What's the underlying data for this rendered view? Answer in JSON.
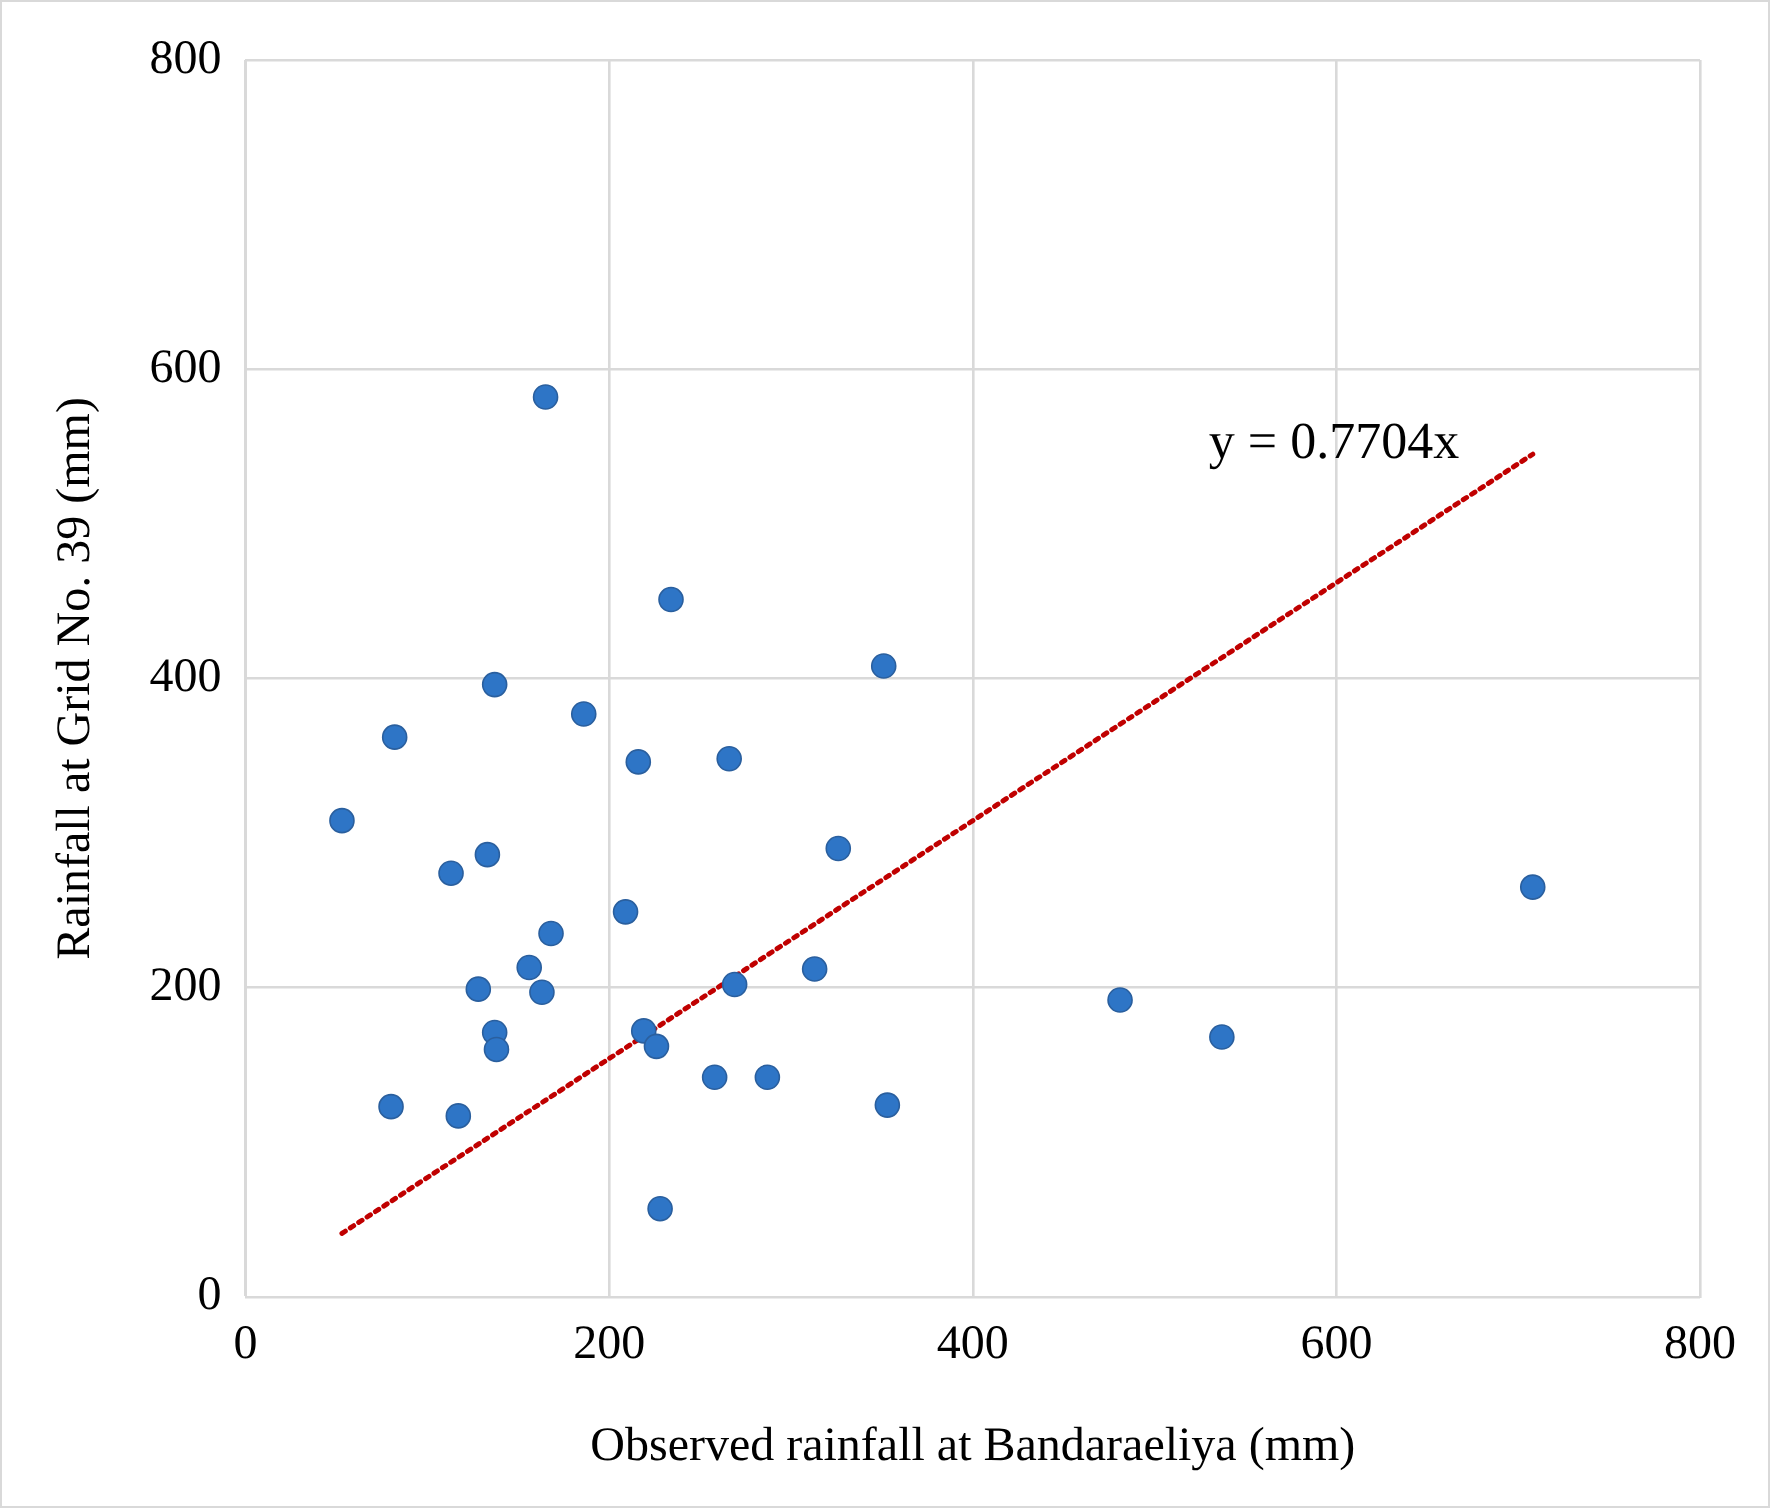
{
  "chart_data": {
    "type": "scatter",
    "xlabel": "Observed rainfall at Bandaraeliya (mm)",
    "ylabel": "Rainfall at Grid No. 39 (mm)",
    "xlim": [
      0,
      800
    ],
    "xticks": [
      0,
      200,
      400,
      600,
      800
    ],
    "ylim": [
      0,
      800
    ],
    "yticks": [
      0,
      200,
      400,
      600,
      800
    ],
    "grid": true,
    "series": [
      {
        "color": "#2e75c6",
        "marker": "circle",
        "x": [
          53,
          82,
          80,
          113,
          117,
          128,
          133,
          137,
          137,
          138,
          156,
          163,
          165,
          168,
          186,
          209,
          216,
          219,
          226,
          228,
          234,
          258,
          266,
          269,
          287,
          313,
          326,
          351,
          353,
          481,
          537,
          708
        ],
        "values": [
          308,
          362,
          123,
          274,
          117,
          199,
          286,
          396,
          171,
          160,
          213,
          197,
          582,
          235,
          377,
          249,
          346,
          172,
          162,
          57,
          451,
          142,
          348,
          202,
          142,
          212,
          290,
          408,
          124,
          192,
          168,
          265
        ]
      },
      {
        "type": "line",
        "color": "#c00000",
        "line_style": "dotted",
        "x": [
          53,
          708
        ],
        "values": [
          41,
          545
        ]
      }
    ],
    "annotations": [
      "y = 0.7704x"
    ]
  }
}
